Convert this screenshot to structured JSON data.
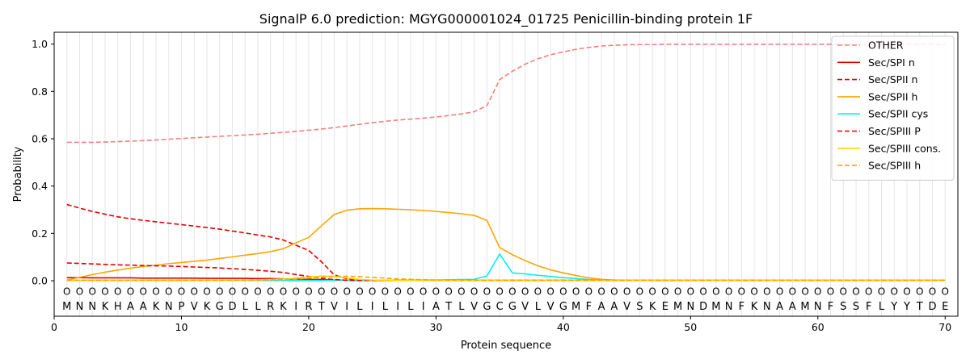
{
  "chart_data": {
    "type": "line",
    "title": "SignalP 6.0 prediction: MGYG000001024_01725 Penicillin-binding protein 1F",
    "xlabel": "Protein sequence",
    "ylabel": "Probability",
    "xlim": [
      0,
      71
    ],
    "ylim": [
      -0.15,
      1.05
    ],
    "xticks": [
      0,
      10,
      20,
      30,
      40,
      50,
      60,
      70
    ],
    "yticks": [
      0.0,
      0.2,
      0.4,
      0.6,
      0.8,
      1.0
    ],
    "vertical_grid": true,
    "legend_position": "top-right",
    "sequence": [
      "M",
      "N",
      "N",
      "K",
      "H",
      "A",
      "A",
      "K",
      "N",
      "P",
      "V",
      "K",
      "G",
      "D",
      "L",
      "L",
      "R",
      "K",
      "I",
      "R",
      "T",
      "V",
      "I",
      "L",
      "I",
      "L",
      "I",
      "L",
      "I",
      "A",
      "T",
      "L",
      "V",
      "G",
      "C",
      "G",
      "V",
      "L",
      "V",
      "G",
      "M",
      "F",
      "A",
      "A",
      "V",
      "S",
      "K",
      "E",
      "M",
      "N",
      "D",
      "M",
      "N",
      "F",
      "K",
      "N",
      "A",
      "A",
      "M",
      "N",
      "F",
      "S",
      "S",
      "F",
      "L",
      "Y",
      "Y",
      "T",
      "D",
      "E"
    ],
    "position_label": "O",
    "series": [
      {
        "name": "OTHER",
        "color": "#f08080",
        "dash": "dashed",
        "values": [
          0.585,
          0.585,
          0.585,
          0.586,
          0.588,
          0.59,
          0.592,
          0.595,
          0.598,
          0.601,
          0.604,
          0.607,
          0.61,
          0.613,
          0.616,
          0.619,
          0.623,
          0.627,
          0.631,
          0.636,
          0.641,
          0.647,
          0.654,
          0.661,
          0.668,
          0.674,
          0.679,
          0.683,
          0.687,
          0.692,
          0.698,
          0.705,
          0.714,
          0.74,
          0.85,
          0.885,
          0.915,
          0.938,
          0.955,
          0.967,
          0.978,
          0.986,
          0.992,
          0.995,
          0.997,
          0.998,
          0.998,
          0.999,
          0.999,
          0.999,
          0.999,
          0.999,
          0.999,
          0.999,
          0.999,
          0.999,
          0.999,
          0.999,
          0.999,
          0.999,
          0.999,
          0.999,
          0.999,
          0.999,
          0.999,
          0.999,
          0.999,
          0.999,
          0.999,
          0.999
        ]
      },
      {
        "name": "Sec/SPI n",
        "color": "#e00000",
        "dash": "solid",
        "values": [
          0.013,
          0.013,
          0.012,
          0.012,
          0.012,
          0.012,
          0.011,
          0.011,
          0.011,
          0.011,
          0.011,
          0.01,
          0.01,
          0.01,
          0.01,
          0.009,
          0.009,
          0.008,
          0.007,
          0.006,
          0.005,
          0.003,
          0.002,
          0.001,
          0.001,
          0.001,
          0.001,
          0.001,
          0.001,
          0.001,
          0.001,
          0.001,
          0.001,
          0.001,
          0.001,
          0.001,
          0.001,
          0.001,
          0.001,
          0.001,
          0.001,
          0.001,
          0.001,
          0.001,
          0.001,
          0.001,
          0.001,
          0.001,
          0.001,
          0.001,
          0.001,
          0.001,
          0.001,
          0.001,
          0.001,
          0.001,
          0.001,
          0.001,
          0.001,
          0.001,
          0.001,
          0.001,
          0.001,
          0.001,
          0.001,
          0.001,
          0.001,
          0.001,
          0.001,
          0.001
        ]
      },
      {
        "name": "Sec/SPII n",
        "color": "#e00000",
        "dash": "dashed",
        "values": [
          0.322,
          0.307,
          0.293,
          0.281,
          0.27,
          0.262,
          0.255,
          0.249,
          0.243,
          0.237,
          0.231,
          0.225,
          0.218,
          0.21,
          0.202,
          0.193,
          0.185,
          0.172,
          0.15,
          0.128,
          0.08,
          0.025,
          0.008,
          0.003,
          0.002,
          0.001,
          0.001,
          0.001,
          0.001,
          0.001,
          0.001,
          0.001,
          0.001,
          0.001,
          0.001,
          0.001,
          0.001,
          0.001,
          0.001,
          0.001,
          0.001,
          0.001,
          0.001,
          0.001,
          0.001,
          0.001,
          0.001,
          0.001,
          0.001,
          0.001,
          0.001,
          0.001,
          0.001,
          0.001,
          0.001,
          0.001,
          0.001,
          0.001,
          0.001,
          0.001,
          0.001,
          0.001,
          0.001,
          0.001,
          0.001,
          0.001,
          0.001,
          0.001,
          0.001,
          0.001
        ]
      },
      {
        "name": "Sec/SPII h",
        "color": "#ffa500",
        "dash": "solid",
        "values": [
          0.003,
          0.014,
          0.026,
          0.036,
          0.045,
          0.053,
          0.06,
          0.066,
          0.072,
          0.077,
          0.082,
          0.087,
          0.094,
          0.101,
          0.108,
          0.115,
          0.123,
          0.135,
          0.16,
          0.183,
          0.232,
          0.28,
          0.298,
          0.304,
          0.305,
          0.304,
          0.302,
          0.3,
          0.297,
          0.293,
          0.288,
          0.283,
          0.276,
          0.255,
          0.14,
          0.11,
          0.085,
          0.063,
          0.046,
          0.033,
          0.022,
          0.012,
          0.006,
          0.003,
          0.002,
          0.001,
          0.001,
          0.001,
          0.001,
          0.001,
          0.001,
          0.001,
          0.001,
          0.001,
          0.001,
          0.001,
          0.001,
          0.001,
          0.001,
          0.001,
          0.001,
          0.001,
          0.001,
          0.001,
          0.001,
          0.001,
          0.001,
          0.001,
          0.001,
          0.001
        ]
      },
      {
        "name": "Sec/SPII cys",
        "color": "#00f0f0",
        "dash": "solid",
        "values": [
          0.001,
          0.001,
          0.001,
          0.001,
          0.001,
          0.001,
          0.001,
          0.001,
          0.001,
          0.001,
          0.001,
          0.001,
          0.001,
          0.001,
          0.001,
          0.001,
          0.001,
          0.001,
          0.001,
          0.001,
          0.001,
          0.002,
          0.002,
          0.002,
          0.002,
          0.002,
          0.002,
          0.003,
          0.003,
          0.003,
          0.004,
          0.005,
          0.006,
          0.02,
          0.113,
          0.033,
          0.029,
          0.023,
          0.018,
          0.013,
          0.009,
          0.005,
          0.003,
          0.002,
          0.001,
          0.001,
          0.001,
          0.001,
          0.001,
          0.001,
          0.001,
          0.001,
          0.001,
          0.001,
          0.001,
          0.001,
          0.001,
          0.001,
          0.001,
          0.001,
          0.001,
          0.001,
          0.001,
          0.001,
          0.001,
          0.001,
          0.001,
          0.001,
          0.001,
          0.001
        ]
      },
      {
        "name": "Sec/SPIII P",
        "color": "#e00000",
        "dash": "dashed",
        "values": [
          0.075,
          0.073,
          0.071,
          0.069,
          0.067,
          0.066,
          0.064,
          0.063,
          0.062,
          0.06,
          0.058,
          0.056,
          0.054,
          0.051,
          0.048,
          0.044,
          0.04,
          0.035,
          0.026,
          0.018,
          0.01,
          0.005,
          0.002,
          0.001,
          0.001,
          0.001,
          0.001,
          0.001,
          0.001,
          0.001,
          0.001,
          0.001,
          0.001,
          0.001,
          0.001,
          0.001,
          0.001,
          0.001,
          0.001,
          0.001,
          0.001,
          0.001,
          0.001,
          0.001,
          0.001,
          0.001,
          0.001,
          0.001,
          0.001,
          0.001,
          0.001,
          0.001,
          0.001,
          0.001,
          0.001,
          0.001,
          0.001,
          0.001,
          0.001,
          0.001,
          0.001,
          0.001,
          0.001,
          0.001,
          0.001,
          0.001,
          0.001,
          0.001,
          0.001,
          0.001
        ]
      },
      {
        "name": "Sec/SPIII cons.",
        "color": "#ffd700",
        "dash": "solid",
        "values": [
          0.002,
          0.002,
          0.002,
          0.002,
          0.002,
          0.002,
          0.002,
          0.002,
          0.002,
          0.002,
          0.002,
          0.002,
          0.002,
          0.003,
          0.003,
          0.004,
          0.005,
          0.007,
          0.011,
          0.016,
          0.02,
          0.018,
          0.012,
          0.006,
          0.003,
          0.002,
          0.001,
          0.001,
          0.001,
          0.001,
          0.001,
          0.001,
          0.001,
          0.001,
          0.001,
          0.001,
          0.001,
          0.001,
          0.001,
          0.001,
          0.001,
          0.001,
          0.001,
          0.001,
          0.001,
          0.001,
          0.001,
          0.001,
          0.001,
          0.001,
          0.001,
          0.001,
          0.001,
          0.001,
          0.001,
          0.001,
          0.001,
          0.001,
          0.001,
          0.001,
          0.001,
          0.001,
          0.001,
          0.001,
          0.001,
          0.001,
          0.001,
          0.001,
          0.001,
          0.001
        ]
      },
      {
        "name": "Sec/SPIII h",
        "color": "#ffa500",
        "dash": "dashed",
        "values": [
          0.002,
          0.002,
          0.002,
          0.002,
          0.002,
          0.002,
          0.002,
          0.002,
          0.002,
          0.002,
          0.002,
          0.002,
          0.002,
          0.002,
          0.003,
          0.003,
          0.004,
          0.005,
          0.008,
          0.011,
          0.015,
          0.018,
          0.019,
          0.017,
          0.014,
          0.011,
          0.008,
          0.006,
          0.004,
          0.003,
          0.002,
          0.002,
          0.001,
          0.001,
          0.001,
          0.001,
          0.001,
          0.001,
          0.001,
          0.001,
          0.001,
          0.001,
          0.001,
          0.001,
          0.001,
          0.001,
          0.001,
          0.001,
          0.001,
          0.001,
          0.001,
          0.001,
          0.001,
          0.001,
          0.001,
          0.001,
          0.001,
          0.001,
          0.001,
          0.001,
          0.001,
          0.001,
          0.001,
          0.001,
          0.001,
          0.001,
          0.001,
          0.001,
          0.001,
          0.001
        ]
      }
    ]
  }
}
